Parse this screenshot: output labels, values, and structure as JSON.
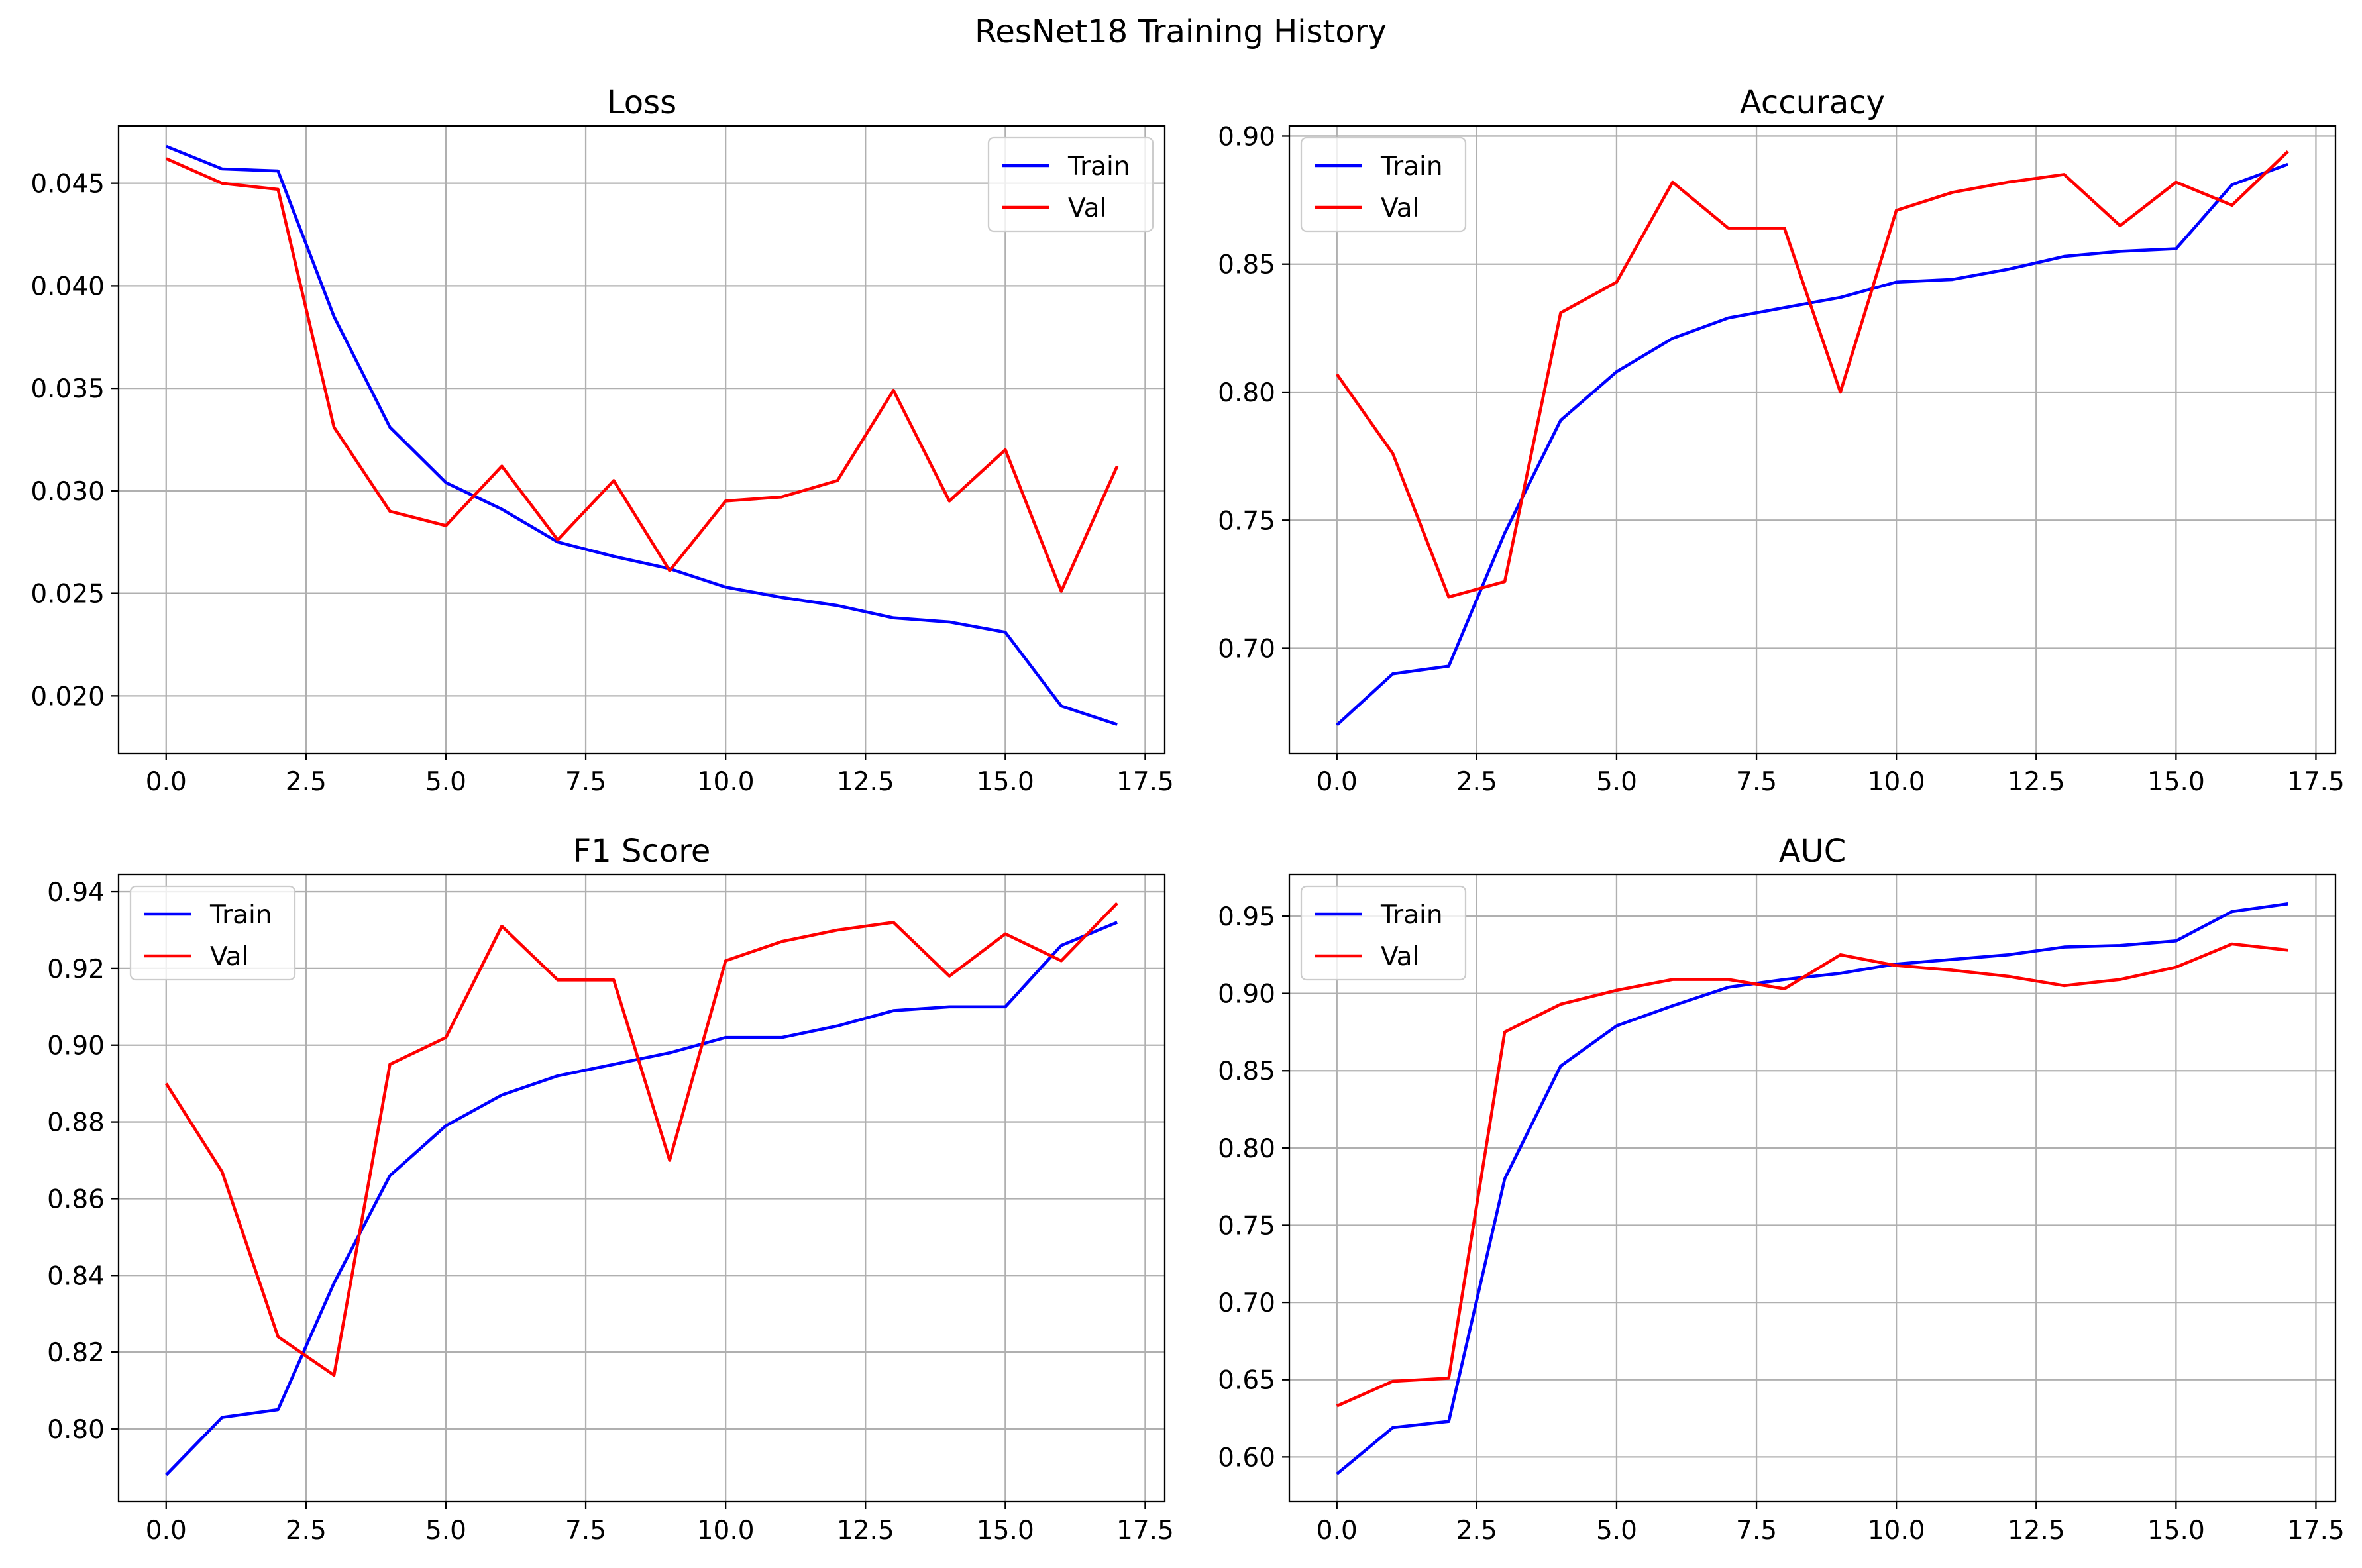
{
  "figure_title": "ResNet18 Training History",
  "colors": {
    "Train": "#0000ff",
    "Val": "#ff0000"
  },
  "chart_data": [
    {
      "type": "line",
      "title": "Loss",
      "xlabel": "",
      "ylabel": "",
      "x": [
        0,
        1,
        2,
        3,
        4,
        5,
        6,
        7,
        8,
        9,
        10,
        11,
        12,
        13,
        14,
        15,
        16,
        17
      ],
      "xlim": [
        -0.85,
        17.85
      ],
      "xticks": [
        "0.0",
        "2.5",
        "5.0",
        "7.5",
        "10.0",
        "12.5",
        "15.0",
        "17.5"
      ],
      "ylim": [
        0.0172,
        0.0478
      ],
      "yticks": [
        "0.020",
        "0.025",
        "0.030",
        "0.035",
        "0.040",
        "0.045"
      ],
      "grid": true,
      "legend": "upper right",
      "series": [
        {
          "name": "Train",
          "color": "#0000ff",
          "values": [
            0.0468,
            0.0457,
            0.0456,
            0.0385,
            0.0331,
            0.0304,
            0.0291,
            0.0275,
            0.0268,
            0.0262,
            0.0253,
            0.0248,
            0.0244,
            0.0238,
            0.0236,
            0.0231,
            0.0195,
            0.0186
          ]
        },
        {
          "name": "Val",
          "color": "#ff0000",
          "values": [
            0.0462,
            0.045,
            0.0447,
            0.0331,
            0.029,
            0.0283,
            0.0312,
            0.0276,
            0.0305,
            0.0261,
            0.0295,
            0.0297,
            0.0305,
            0.0349,
            0.0295,
            0.032,
            0.0251,
            0.0312
          ]
        }
      ]
    },
    {
      "type": "line",
      "title": "Accuracy",
      "xlabel": "",
      "ylabel": "",
      "x": [
        0,
        1,
        2,
        3,
        4,
        5,
        6,
        7,
        8,
        9,
        10,
        11,
        12,
        13,
        14,
        15,
        16,
        17
      ],
      "xlim": [
        -0.85,
        17.85
      ],
      "xticks": [
        "0.0",
        "2.5",
        "5.0",
        "7.5",
        "10.0",
        "12.5",
        "15.0",
        "17.5"
      ],
      "ylim": [
        0.659,
        0.904
      ],
      "yticks": [
        "0.70",
        "0.75",
        "0.80",
        "0.85",
        "0.90"
      ],
      "grid": true,
      "legend": "upper left",
      "series": [
        {
          "name": "Train",
          "color": "#0000ff",
          "values": [
            0.67,
            0.69,
            0.693,
            0.745,
            0.789,
            0.808,
            0.821,
            0.829,
            0.833,
            0.837,
            0.843,
            0.844,
            0.848,
            0.853,
            0.855,
            0.856,
            0.881,
            0.889
          ]
        },
        {
          "name": "Val",
          "color": "#ff0000",
          "values": [
            0.807,
            0.776,
            0.72,
            0.726,
            0.831,
            0.843,
            0.882,
            0.864,
            0.864,
            0.8,
            0.871,
            0.878,
            0.882,
            0.885,
            0.865,
            0.882,
            0.873,
            0.894
          ]
        }
      ]
    },
    {
      "type": "line",
      "title": "F1 Score",
      "xlabel": "",
      "ylabel": "",
      "x": [
        0,
        1,
        2,
        3,
        4,
        5,
        6,
        7,
        8,
        9,
        10,
        11,
        12,
        13,
        14,
        15,
        16,
        17
      ],
      "xlim": [
        -0.85,
        17.85
      ],
      "xticks": [
        "0.0",
        "2.5",
        "5.0",
        "7.5",
        "10.0",
        "12.5",
        "15.0",
        "17.5"
      ],
      "ylim": [
        0.781,
        0.9445
      ],
      "yticks": [
        "0.80",
        "0.82",
        "0.84",
        "0.86",
        "0.88",
        "0.90",
        "0.92",
        "0.94"
      ],
      "grid": true,
      "legend": "upper left",
      "series": [
        {
          "name": "Train",
          "color": "#0000ff",
          "values": [
            0.788,
            0.803,
            0.805,
            0.838,
            0.866,
            0.879,
            0.887,
            0.892,
            0.895,
            0.898,
            0.902,
            0.902,
            0.905,
            0.909,
            0.91,
            0.91,
            0.926,
            0.932
          ]
        },
        {
          "name": "Val",
          "color": "#ff0000",
          "values": [
            0.89,
            0.867,
            0.824,
            0.814,
            0.895,
            0.902,
            0.931,
            0.917,
            0.917,
            0.87,
            0.922,
            0.927,
            0.93,
            0.932,
            0.918,
            0.929,
            0.922,
            0.937
          ]
        }
      ]
    },
    {
      "type": "line",
      "title": "AUC",
      "xlabel": "",
      "ylabel": "",
      "x": [
        0,
        1,
        2,
        3,
        4,
        5,
        6,
        7,
        8,
        9,
        10,
        11,
        12,
        13,
        14,
        15,
        16,
        17
      ],
      "xlim": [
        -0.85,
        17.85
      ],
      "xticks": [
        "0.0",
        "2.5",
        "5.0",
        "7.5",
        "10.0",
        "12.5",
        "15.0",
        "17.5"
      ],
      "ylim": [
        0.571,
        0.977
      ],
      "yticks": [
        "0.60",
        "0.65",
        "0.70",
        "0.75",
        "0.80",
        "0.85",
        "0.90",
        "0.95"
      ],
      "grid": true,
      "legend": "upper left",
      "series": [
        {
          "name": "Train",
          "color": "#0000ff",
          "values": [
            0.589,
            0.619,
            0.623,
            0.78,
            0.853,
            0.879,
            0.892,
            0.904,
            0.909,
            0.913,
            0.919,
            0.922,
            0.925,
            0.93,
            0.931,
            0.934,
            0.953,
            0.958
          ]
        },
        {
          "name": "Val",
          "color": "#ff0000",
          "values": [
            0.633,
            0.649,
            0.651,
            0.875,
            0.893,
            0.902,
            0.909,
            0.909,
            0.903,
            0.925,
            0.918,
            0.915,
            0.911,
            0.905,
            0.909,
            0.917,
            0.932,
            0.928
          ]
        }
      ]
    }
  ]
}
